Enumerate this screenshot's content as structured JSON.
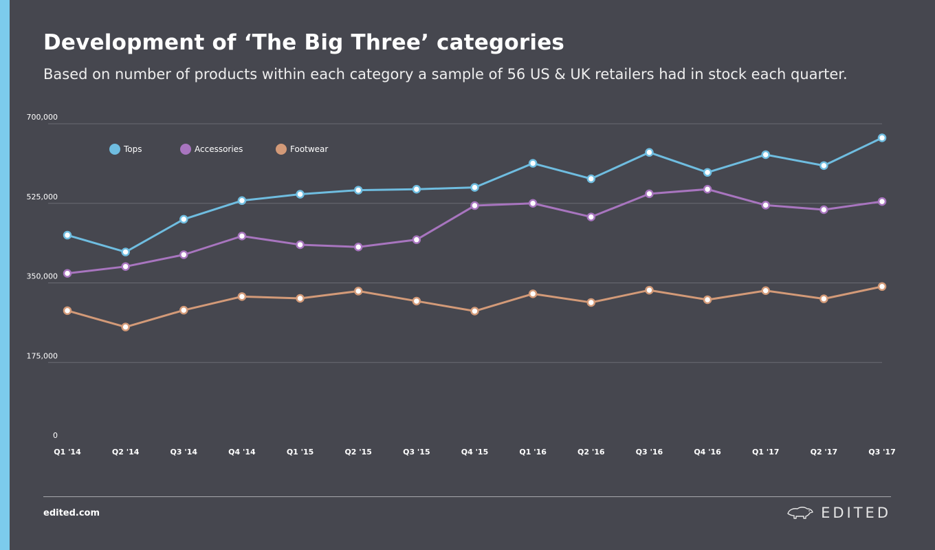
{
  "header": {
    "title": "Development of ‘The Big Three’ categories",
    "subtitle": "Based on number of products within each category a sample of 56 US & UK retailers had in stock each quarter."
  },
  "footer": {
    "site": "edited.com",
    "brand": "EDITED",
    "brand_icon": "polar-bear-icon"
  },
  "colors": {
    "background": "#46474f",
    "accent": "#7ccbec",
    "tops": "#6fbde0",
    "accessories": "#a875bf",
    "footwear": "#d39a78"
  },
  "chart_data": {
    "type": "line",
    "title": "Development of ‘The Big Three’ categories",
    "categories": [
      "Q1 '14",
      "Q2 '14",
      "Q3 '14",
      "Q4 '14",
      "Q1 '15",
      "Q2 '15",
      "Q3 '15",
      "Q4 '15",
      "Q1 '16",
      "Q2 '16",
      "Q3 '16",
      "Q4 '16",
      "Q1 '17",
      "Q2 '17",
      "Q3 '17"
    ],
    "yticks": [
      "0",
      "175,000",
      "350,000",
      "525,000",
      "700,000"
    ],
    "ylim": [
      0,
      700000
    ],
    "grid": true,
    "legend_position": "top-left",
    "series": [
      {
        "name": "Tops",
        "color": "#6fbde0",
        "values": [
          455000,
          418000,
          490000,
          531000,
          545000,
          554000,
          556000,
          560000,
          613000,
          579000,
          637000,
          593000,
          632000,
          608000,
          669000
        ]
      },
      {
        "name": "Accessories",
        "color": "#a875bf",
        "values": [
          371000,
          386000,
          412000,
          453000,
          434000,
          429000,
          445000,
          520000,
          525000,
          495000,
          546000,
          556000,
          521000,
          511000,
          529000
        ]
      },
      {
        "name": "Footwear",
        "color": "#d39a78",
        "values": [
          289000,
          253000,
          290000,
          320000,
          316000,
          332000,
          310000,
          288000,
          326000,
          307000,
          334000,
          313000,
          333000,
          315000,
          342000
        ]
      }
    ]
  }
}
